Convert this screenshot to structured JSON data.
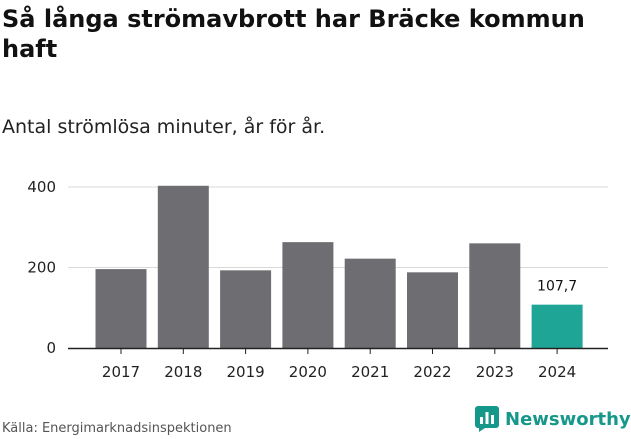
{
  "title": "Så långa strömavbrott har Bräcke kommun haft",
  "subtitle": "Antal strömlösa minuter, år för år.",
  "source": "Källa: Energimarknadsinspektionen",
  "brand": {
    "name": "Newsworthy",
    "icon": "newsworthy-chart-logo-icon"
  },
  "colors": {
    "bar": "#6e6d72",
    "highlight": "#1fa595",
    "grid": "#d9d9d9",
    "axis": "#222222",
    "brand": "#15978a"
  },
  "chart_data": {
    "type": "bar",
    "categories": [
      "2017",
      "2018",
      "2019",
      "2020",
      "2021",
      "2022",
      "2023",
      "2024"
    ],
    "values": [
      196,
      403,
      193,
      263,
      222,
      188,
      260,
      107.7
    ],
    "highlight_index": 7,
    "data_labels": [
      {
        "index": 7,
        "text": "107,7"
      }
    ],
    "yticks": [
      "0",
      "200",
      "400"
    ],
    "ytick_values": [
      0,
      200,
      400
    ],
    "ylim": [
      0,
      400
    ],
    "grid": true,
    "legend": "none"
  }
}
